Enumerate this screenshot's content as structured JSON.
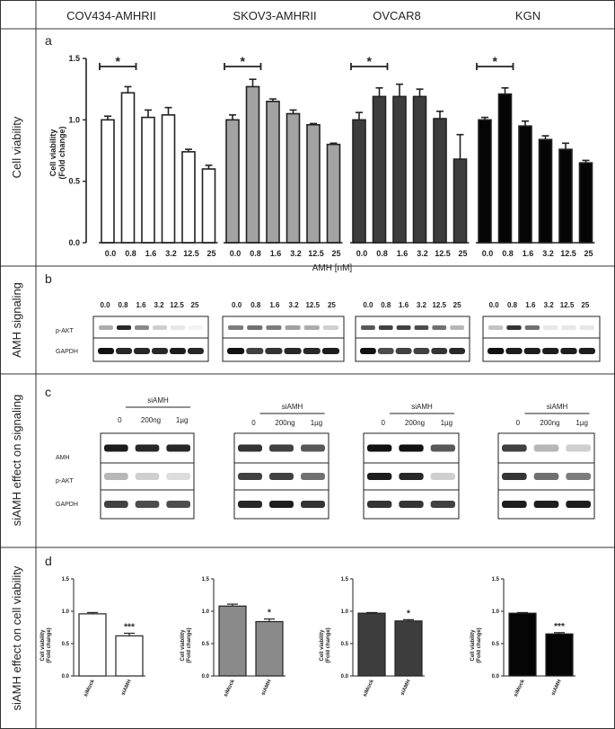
{
  "columns": [
    "COV434-AMHRII",
    "SKOV3-AMHRII",
    "OVCAR8",
    "KGN"
  ],
  "rows": {
    "viability": "Cell viability",
    "signaling": "AMH signaling",
    "siamh_signaling": "siAMH effect on signaling",
    "siamh_viability": "siAMH effect on cell viability"
  },
  "panels": {
    "a": "a",
    "b": "b",
    "c": "c",
    "d": "d"
  },
  "panel_a": {
    "ylabel_line1": "Cell viability",
    "ylabel_line2": "(Fold change)",
    "xlabel": "AMH [nM]",
    "significance": "*"
  },
  "panel_b": {
    "lanes": [
      "0.0",
      "0.8",
      "1.6",
      "3.2",
      "12.5",
      "25"
    ],
    "row_labels": [
      "p-AKT",
      "GAPDH"
    ]
  },
  "panel_c": {
    "treatment": "siAMH",
    "lanes": [
      "0",
      "200ng",
      "1µg"
    ],
    "row_labels": [
      "AMH",
      "p-AKT",
      "GAPDH"
    ]
  },
  "panel_d": {
    "ylabel_line1": "Cell viability",
    "ylabel_line2": "(Fold change)"
  },
  "colors": {
    "cov434": "#ffffff",
    "skov3": "#a3a3a3",
    "ovcar8": "#3d3d3d",
    "kgn": "#050505",
    "axis": "#222222"
  },
  "chart_data": [
    {
      "type": "bar",
      "panel": "a",
      "title": "",
      "xlabel": "AMH [nM]",
      "ylabel": "Cell viability (Fold change)",
      "ylim": [
        0,
        1.5
      ],
      "yticks": [
        "0.0",
        "0.5",
        "1.0",
        "1.5"
      ],
      "categories": [
        "0.0",
        "0.8",
        "1.6",
        "3.2",
        "12.5",
        "25"
      ],
      "series": [
        {
          "name": "COV434-AMHRII",
          "color": "#ffffff",
          "values": [
            1.0,
            1.22,
            1.02,
            1.04,
            0.74,
            0.6
          ],
          "errors": [
            0.03,
            0.05,
            0.06,
            0.06,
            0.02,
            0.03
          ]
        },
        {
          "name": "SKOV3-AMHRII",
          "color": "#a3a3a3",
          "values": [
            1.0,
            1.27,
            1.15,
            1.05,
            0.96,
            0.8
          ],
          "errors": [
            0.04,
            0.06,
            0.02,
            0.03,
            0.01,
            0.01
          ]
        },
        {
          "name": "OVCAR8",
          "color": "#3d3d3d",
          "values": [
            1.0,
            1.19,
            1.19,
            1.19,
            1.01,
            0.68
          ],
          "errors": [
            0.06,
            0.07,
            0.1,
            0.06,
            0.06,
            0.2
          ]
        },
        {
          "name": "KGN",
          "color": "#050505",
          "values": [
            1.0,
            1.21,
            0.95,
            0.84,
            0.76,
            0.65
          ],
          "errors": [
            0.02,
            0.05,
            0.04,
            0.03,
            0.05,
            0.02
          ]
        }
      ],
      "annotations": [
        "* between 0.0 and 0.8 in each cell line"
      ]
    },
    {
      "type": "bar",
      "panel": "d",
      "ylim": [
        0,
        1.5
      ],
      "yticks": [
        "0.0",
        "0.5",
        "1.0",
        "1.5"
      ],
      "categories": [
        "siMock",
        "siAMH"
      ],
      "series": [
        {
          "name": "COV434-AMHRII",
          "color": "#ffffff",
          "values": [
            0.96,
            0.62
          ],
          "errors": [
            0.02,
            0.04
          ],
          "significance": "***"
        },
        {
          "name": "SKOV3-AMHRII",
          "color": "#8a8a8a",
          "values": [
            1.08,
            0.84
          ],
          "errors": [
            0.03,
            0.04
          ],
          "significance": "*"
        },
        {
          "name": "OVCAR8",
          "color": "#3d3d3d",
          "values": [
            0.97,
            0.85
          ],
          "errors": [
            0.01,
            0.02
          ],
          "significance": "*"
        },
        {
          "name": "KGN",
          "color": "#050505",
          "values": [
            0.97,
            0.65
          ],
          "errors": [
            0.01,
            0.02
          ],
          "significance": "***"
        }
      ]
    }
  ]
}
